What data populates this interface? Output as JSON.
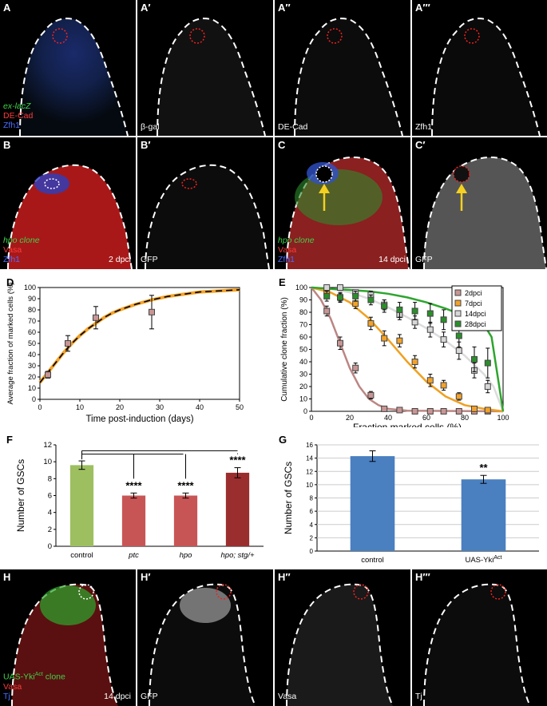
{
  "row1": {
    "panels": [
      {
        "label": "A"
      },
      {
        "label": "A′"
      },
      {
        "label": "A′′"
      },
      {
        "label": "A′′′"
      }
    ],
    "A_legend": [
      "ex-lacZ",
      "DE-Cad",
      "Zfh1"
    ],
    "A1_channel": "β-gal",
    "A2_channel": "DE-Cad",
    "A3_channel": "Zfh1"
  },
  "row2": {
    "panels": [
      {
        "label": "B"
      },
      {
        "label": "B′"
      },
      {
        "label": "C"
      },
      {
        "label": "C′"
      }
    ],
    "B_legend": [
      "hpo clone",
      "Vasa",
      "Zfh1"
    ],
    "B_time": "2 dpci",
    "B1_channel": "GFP",
    "C_legend": [
      "hpo clone",
      "Vasa",
      "Zfh1"
    ],
    "C_time": "14 dpci",
    "C1_channel": "GFP"
  },
  "row5": {
    "panels": [
      {
        "label": "H"
      },
      {
        "label": "H′"
      },
      {
        "label": "H′′"
      },
      {
        "label": "H′′′"
      }
    ],
    "H_legend": [
      "UAS-Yki",
      "Act",
      " clone",
      "Vasa",
      "Tj"
    ],
    "H_time": "14 dpci",
    "H1_channel": "GFP",
    "H2_channel": "Vasa",
    "H3_channel": "Tj"
  },
  "colors": {
    "green": "#3fd24a",
    "red": "#ff3b3b",
    "blue": "#4a6cff"
  },
  "chart_data": [
    {
      "panel": "D",
      "type": "scatter",
      "xlabel": "Time post-induction (days)",
      "ylabel": "Average fraction of marked cells (%)",
      "xlim": [
        0,
        50
      ],
      "ylim": [
        0,
        100
      ],
      "xticks": [
        0,
        10,
        20,
        30,
        40,
        50
      ],
      "yticks": [
        0,
        10,
        20,
        30,
        40,
        50,
        60,
        70,
        80,
        90,
        100
      ],
      "points": [
        {
          "x": 2,
          "y": 22,
          "err": 3
        },
        {
          "x": 7,
          "y": 50,
          "err": 7
        },
        {
          "x": 14,
          "y": 73,
          "err": 10
        },
        {
          "x": 28,
          "y": 78,
          "err": 15
        }
      ],
      "fit_curve": [
        [
          0,
          15
        ],
        [
          2,
          24
        ],
        [
          4,
          33
        ],
        [
          6,
          42
        ],
        [
          8,
          50
        ],
        [
          10,
          57
        ],
        [
          12,
          63
        ],
        [
          14,
          68
        ],
        [
          16,
          73
        ],
        [
          18,
          77
        ],
        [
          20,
          80
        ],
        [
          24,
          85
        ],
        [
          28,
          89
        ],
        [
          32,
          92
        ],
        [
          36,
          94
        ],
        [
          40,
          96
        ],
        [
          45,
          97
        ],
        [
          50,
          98
        ]
      ]
    },
    {
      "panel": "E",
      "type": "scatter",
      "xlabel": "Fraction marked cells (%)",
      "ylabel": "Cumulative clone fraction (%)",
      "xlim": [
        0,
        100
      ],
      "ylim": [
        0,
        100
      ],
      "xticks": [
        0,
        20,
        40,
        60,
        80,
        100
      ],
      "yticks": [
        0,
        10,
        20,
        30,
        40,
        50,
        60,
        70,
        80,
        90,
        100
      ],
      "series": [
        {
          "name": "2dpci",
          "color": "#c89694",
          "line": "#bb8683",
          "points": [
            [
              8,
              81,
              4
            ],
            [
              15,
              55,
              5
            ],
            [
              23,
              35,
              4
            ],
            [
              31,
              13,
              3
            ],
            [
              38,
              2,
              1
            ],
            [
              46,
              1,
              1
            ],
            [
              54,
              0,
              0
            ],
            [
              62,
              0,
              0
            ],
            [
              69,
              0,
              0
            ],
            [
              77,
              0,
              0
            ],
            [
              85,
              0,
              0
            ],
            [
              92,
              0,
              0
            ]
          ],
          "curve": [
            [
              0,
              100
            ],
            [
              5,
              90
            ],
            [
              10,
              75
            ],
            [
              15,
              55
            ],
            [
              20,
              35
            ],
            [
              25,
              20
            ],
            [
              30,
              10
            ],
            [
              35,
              5
            ],
            [
              40,
              2
            ],
            [
              50,
              0.5
            ],
            [
              100,
              0
            ]
          ]
        },
        {
          "name": "7dpci",
          "color": "#f2a22a",
          "line": "#f0a020",
          "points": [
            [
              8,
              96,
              3
            ],
            [
              15,
              92,
              3
            ],
            [
              23,
              87,
              4
            ],
            [
              31,
              71,
              5
            ],
            [
              38,
              59,
              6
            ],
            [
              46,
              57,
              5
            ],
            [
              54,
              40,
              5
            ],
            [
              62,
              25,
              5
            ],
            [
              69,
              21,
              4
            ],
            [
              77,
              12,
              3
            ],
            [
              85,
              2,
              1
            ],
            [
              92,
              1,
              1
            ]
          ],
          "curve": [
            [
              0,
              100
            ],
            [
              10,
              96
            ],
            [
              20,
              88
            ],
            [
              30,
              75
            ],
            [
              40,
              58
            ],
            [
              50,
              40
            ],
            [
              60,
              24
            ],
            [
              70,
              12
            ],
            [
              80,
              5
            ],
            [
              90,
              2
            ],
            [
              100,
              0
            ]
          ]
        },
        {
          "name": "14dpci",
          "color": "#d7d7d7",
          "line": "#dcdcdc",
          "points": [
            [
              8,
              100,
              2
            ],
            [
              15,
              100,
              2
            ],
            [
              23,
              96,
              2
            ],
            [
              31,
              94,
              3
            ],
            [
              38,
              86,
              4
            ],
            [
              46,
              78,
              4
            ],
            [
              54,
              72,
              5
            ],
            [
              62,
              66,
              6
            ],
            [
              69,
              58,
              6
            ],
            [
              77,
              49,
              7
            ],
            [
              85,
              33,
              6
            ],
            [
              92,
              20,
              5
            ]
          ],
          "curve": [
            [
              0,
              100
            ],
            [
              10,
              99
            ],
            [
              20,
              96
            ],
            [
              30,
              91
            ],
            [
              40,
              84
            ],
            [
              50,
              76
            ],
            [
              60,
              67
            ],
            [
              70,
              57
            ],
            [
              80,
              45
            ],
            [
              90,
              30
            ],
            [
              95,
              20
            ],
            [
              100,
              0
            ]
          ]
        },
        {
          "name": "28dpci",
          "color": "#2a8f2a",
          "line": "#2ea52e",
          "points": [
            [
              8,
              93,
              4
            ],
            [
              15,
              92,
              4
            ],
            [
              23,
              93,
              4
            ],
            [
              31,
              90,
              4
            ],
            [
              38,
              85,
              5
            ],
            [
              46,
              82,
              6
            ],
            [
              54,
              81,
              7
            ],
            [
              62,
              79,
              8
            ],
            [
              69,
              74,
              8
            ],
            [
              77,
              61,
              9
            ],
            [
              85,
              42,
              10
            ],
            [
              92,
              39,
              12
            ]
          ],
          "curve": [
            [
              0,
              100
            ],
            [
              10,
              99
            ],
            [
              20,
              98
            ],
            [
              30,
              97
            ],
            [
              40,
              95
            ],
            [
              50,
              92
            ],
            [
              60,
              88
            ],
            [
              70,
              83
            ],
            [
              80,
              77
            ],
            [
              90,
              70
            ],
            [
              94,
              60
            ],
            [
              100,
              0
            ]
          ]
        }
      ]
    },
    {
      "panel": "F",
      "type": "bar",
      "ylabel": "Number of GSCs",
      "ylim": [
        0,
        12
      ],
      "yticks": [
        0,
        2,
        4,
        6,
        8,
        10,
        12
      ],
      "categories": [
        "control",
        "ptc",
        "hpo",
        "hpo; stg/+"
      ],
      "values": [
        9.6,
        6.0,
        6.0,
        8.7
      ],
      "errors": [
        0.5,
        0.3,
        0.3,
        0.6
      ],
      "bar_colors": [
        "#9dbf60",
        "#c85555",
        "#c85555",
        "#9a2e2e"
      ],
      "significance": [
        "",
        "****",
        "****",
        "****"
      ]
    },
    {
      "panel": "G",
      "type": "bar",
      "ylabel": "Number of GSCs",
      "ylim": [
        0,
        16
      ],
      "yticks": [
        0,
        2,
        4,
        6,
        8,
        10,
        12,
        14,
        16
      ],
      "categories": [
        "control",
        "UAS-Yki"
      ],
      "category_sup": [
        "",
        "Act"
      ],
      "values": [
        14.3,
        10.8
      ],
      "errors": [
        0.8,
        0.6
      ],
      "bar_colors": [
        "#4a7fc0",
        "#4a7fc0"
      ],
      "significance": [
        "",
        "**"
      ]
    }
  ]
}
